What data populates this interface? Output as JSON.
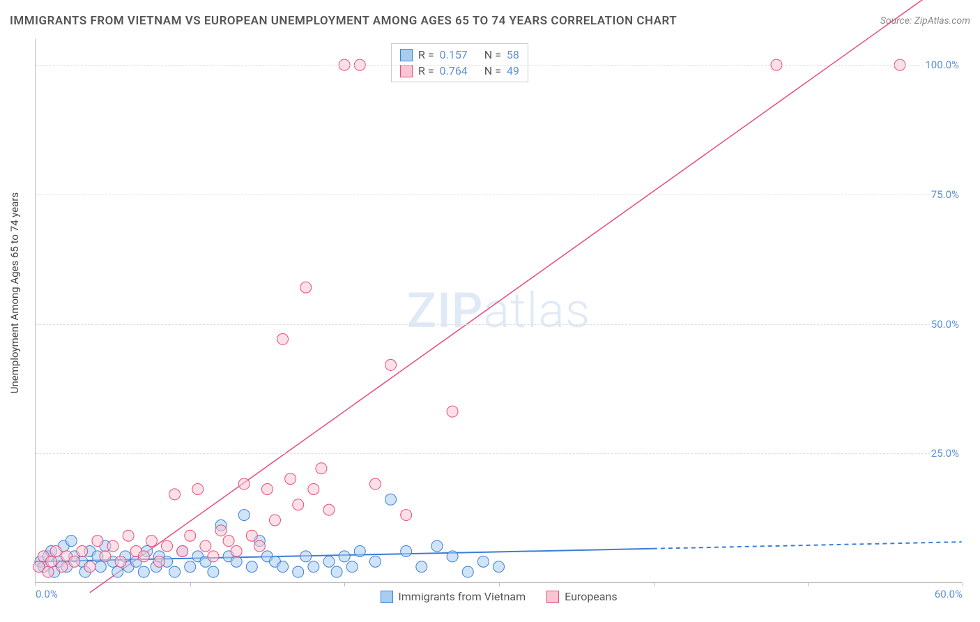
{
  "title": "IMMIGRANTS FROM VIETNAM VS EUROPEAN UNEMPLOYMENT AMONG AGES 65 TO 74 YEARS CORRELATION CHART",
  "source": "Source: ZipAtlas.com",
  "y_axis_label": "Unemployment Among Ages 65 to 74 years",
  "watermark_bold": "ZIP",
  "watermark_thin": "atlas",
  "colors": {
    "blue_fill": "#a9cdf0",
    "blue_stroke": "#3b7dd8",
    "pink_fill": "#f8c6d3",
    "pink_stroke": "#e94b7a",
    "axis_text": "#5b8fd6",
    "grid": "#dddddd",
    "text": "#555555"
  },
  "stats": [
    {
      "swatch_fill": "#a9cdf0",
      "swatch_stroke": "#3b7dd8",
      "r_label": "R =",
      "r_value": "0.157",
      "n_label": "N =",
      "n_value": "58"
    },
    {
      "swatch_fill": "#f8c6d3",
      "swatch_stroke": "#e94b7a",
      "r_label": "R =",
      "r_value": "0.764",
      "n_label": "N =",
      "n_value": "49"
    }
  ],
  "legend": [
    {
      "swatch_fill": "#a9cdf0",
      "swatch_stroke": "#3b7dd8",
      "label": "Immigrants from Vietnam"
    },
    {
      "swatch_fill": "#f8c6d3",
      "swatch_stroke": "#e94b7a",
      "label": "Europeans"
    }
  ],
  "chart": {
    "type": "scatter",
    "xlim": [
      0,
      60
    ],
    "ylim": [
      0,
      105
    ],
    "x_ticks": [
      0,
      10,
      20,
      30,
      40,
      50,
      60
    ],
    "x_tick_labels": {
      "0": "0.0%",
      "60": "60.0%"
    },
    "y_ticks": [
      25,
      50,
      75,
      100
    ],
    "y_tick_labels": {
      "25": "25.0%",
      "50": "50.0%",
      "75": "75.0%",
      "100": "100.0%"
    },
    "marker_radius": 8,
    "marker_opacity": 0.55,
    "background": "#ffffff",
    "grid_color": "#dddddd",
    "trend_lines": [
      {
        "color": "#3b7dd8",
        "width": 2,
        "x1": 0,
        "y1": 4.0,
        "x2_solid": 40,
        "y2_solid": 6.5,
        "x2": 60,
        "y2": 7.8,
        "dash_after_solid": true
      },
      {
        "color": "#e94b7a",
        "width": 1.5,
        "x1": 3.5,
        "y1": -2,
        "x2_solid": 60,
        "y2_solid": 118,
        "x2": 60,
        "y2": 118,
        "dash_after_solid": true
      }
    ],
    "series": [
      {
        "name": "vietnam",
        "fill": "#a9cdf0",
        "stroke": "#3b7dd8",
        "points": [
          [
            0.3,
            4
          ],
          [
            0.5,
            3
          ],
          [
            0.8,
            5
          ],
          [
            1.0,
            6
          ],
          [
            1.2,
            2
          ],
          [
            1.5,
            4
          ],
          [
            1.8,
            7
          ],
          [
            2.0,
            3
          ],
          [
            2.3,
            8
          ],
          [
            2.5,
            5
          ],
          [
            3.0,
            4
          ],
          [
            3.2,
            2
          ],
          [
            3.5,
            6
          ],
          [
            4.0,
            5
          ],
          [
            4.2,
            3
          ],
          [
            4.5,
            7
          ],
          [
            5.0,
            4
          ],
          [
            5.3,
            2
          ],
          [
            5.8,
            5
          ],
          [
            6.0,
            3
          ],
          [
            6.5,
            4
          ],
          [
            7.0,
            2
          ],
          [
            7.2,
            6
          ],
          [
            7.8,
            3
          ],
          [
            8.0,
            5
          ],
          [
            8.5,
            4
          ],
          [
            9.0,
            2
          ],
          [
            9.5,
            6
          ],
          [
            10.0,
            3
          ],
          [
            10.5,
            5
          ],
          [
            11.0,
            4
          ],
          [
            11.5,
            2
          ],
          [
            12.0,
            11
          ],
          [
            12.5,
            5
          ],
          [
            13.0,
            4
          ],
          [
            13.5,
            13
          ],
          [
            14.0,
            3
          ],
          [
            14.5,
            8
          ],
          [
            15.0,
            5
          ],
          [
            15.5,
            4
          ],
          [
            16.0,
            3
          ],
          [
            17.0,
            2
          ],
          [
            17.5,
            5
          ],
          [
            18.0,
            3
          ],
          [
            19.0,
            4
          ],
          [
            19.5,
            2
          ],
          [
            20.0,
            5
          ],
          [
            20.5,
            3
          ],
          [
            21.0,
            6
          ],
          [
            22.0,
            4
          ],
          [
            23.0,
            16
          ],
          [
            24.0,
            6
          ],
          [
            25.0,
            3
          ],
          [
            26.0,
            7
          ],
          [
            27.0,
            5
          ],
          [
            28.0,
            2
          ],
          [
            29.0,
            4
          ],
          [
            30.0,
            3
          ]
        ]
      },
      {
        "name": "europeans",
        "fill": "#f8c6d3",
        "stroke": "#e94b7a",
        "points": [
          [
            0.2,
            3
          ],
          [
            0.5,
            5
          ],
          [
            0.8,
            2
          ],
          [
            1.0,
            4
          ],
          [
            1.3,
            6
          ],
          [
            1.7,
            3
          ],
          [
            2.0,
            5
          ],
          [
            2.5,
            4
          ],
          [
            3.0,
            6
          ],
          [
            3.5,
            3
          ],
          [
            4.0,
            8
          ],
          [
            4.5,
            5
          ],
          [
            5.0,
            7
          ],
          [
            5.5,
            4
          ],
          [
            6.0,
            9
          ],
          [
            6.5,
            6
          ],
          [
            7.0,
            5
          ],
          [
            7.5,
            8
          ],
          [
            8.0,
            4
          ],
          [
            8.5,
            7
          ],
          [
            9.0,
            17
          ],
          [
            9.5,
            6
          ],
          [
            10.0,
            9
          ],
          [
            10.5,
            18
          ],
          [
            11.0,
            7
          ],
          [
            11.5,
            5
          ],
          [
            12.0,
            10
          ],
          [
            12.5,
            8
          ],
          [
            13.0,
            6
          ],
          [
            13.5,
            19
          ],
          [
            14.0,
            9
          ],
          [
            14.5,
            7
          ],
          [
            15.0,
            18
          ],
          [
            15.5,
            12
          ],
          [
            16.0,
            47
          ],
          [
            16.5,
            20
          ],
          [
            17.0,
            15
          ],
          [
            17.5,
            57
          ],
          [
            18.0,
            18
          ],
          [
            18.5,
            22
          ],
          [
            19.0,
            14
          ],
          [
            20.0,
            100
          ],
          [
            21.0,
            100
          ],
          [
            22.0,
            19
          ],
          [
            23.0,
            42
          ],
          [
            24.0,
            13
          ],
          [
            27.0,
            33
          ],
          [
            48.0,
            100
          ],
          [
            56.0,
            100
          ]
        ]
      }
    ]
  }
}
